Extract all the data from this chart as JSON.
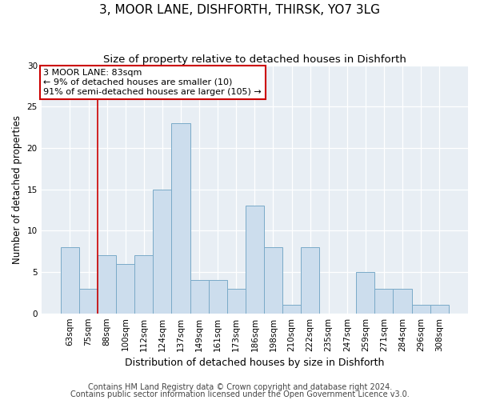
{
  "title": "3, MOOR LANE, DISHFORTH, THIRSK, YO7 3LG",
  "subtitle": "Size of property relative to detached houses in Dishforth",
  "xlabel": "Distribution of detached houses by size in Dishforth",
  "ylabel": "Number of detached properties",
  "categories": [
    "63sqm",
    "75sqm",
    "88sqm",
    "100sqm",
    "112sqm",
    "124sqm",
    "137sqm",
    "149sqm",
    "161sqm",
    "173sqm",
    "186sqm",
    "198sqm",
    "210sqm",
    "222sqm",
    "235sqm",
    "247sqm",
    "259sqm",
    "271sqm",
    "284sqm",
    "296sqm",
    "308sqm"
  ],
  "values": [
    8,
    3,
    7,
    6,
    7,
    15,
    23,
    4,
    4,
    3,
    13,
    8,
    1,
    8,
    0,
    0,
    5,
    3,
    3,
    1,
    1
  ],
  "bar_color": "#ccdded",
  "bar_edge_color": "#7aaac8",
  "vline_color": "#cc0000",
  "annotation_text_line1": "3 MOOR LANE: 83sqm",
  "annotation_text_line2": "← 9% of detached houses are smaller (10)",
  "annotation_text_line3": "91% of semi-detached houses are larger (105) →",
  "annotation_box_edge_color": "#cc0000",
  "ylim": [
    0,
    30
  ],
  "yticks": [
    0,
    5,
    10,
    15,
    20,
    25,
    30
  ],
  "footer1": "Contains HM Land Registry data © Crown copyright and database right 2024.",
  "footer2": "Contains public sector information licensed under the Open Government Licence v3.0.",
  "fig_background": "#ffffff",
  "plot_background": "#e8eef4",
  "title_fontsize": 11,
  "subtitle_fontsize": 9.5,
  "xlabel_fontsize": 9,
  "ylabel_fontsize": 8.5,
  "tick_fontsize": 7.5,
  "annotation_fontsize": 8,
  "footer_fontsize": 7
}
